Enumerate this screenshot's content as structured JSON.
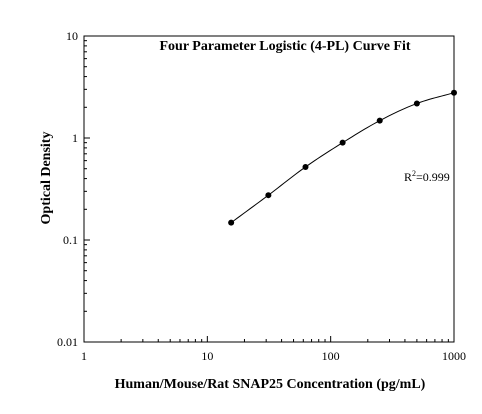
{
  "chart_data": {
    "type": "scatter",
    "title": "Four Parameter Logistic (4-PL) Curve Fit",
    "xlabel": "Human/Mouse/Rat SNAP25 Concentration (pg/mL)",
    "ylabel": "Optical Density",
    "xscale": "log",
    "yscale": "log",
    "xlim": [
      1,
      1000
    ],
    "ylim": [
      0.01,
      10
    ],
    "x_ticks": [
      1,
      10,
      100,
      1000
    ],
    "x_tick_labels": [
      "1",
      "10",
      "100",
      "1000"
    ],
    "y_ticks": [
      0.01,
      0.1,
      1,
      10
    ],
    "y_tick_labels": [
      "0.01",
      "0.1",
      "1",
      "10"
    ],
    "grid": false,
    "legend": "none",
    "series": [
      {
        "x": [
          15.6,
          31.25,
          62.5,
          125,
          250,
          500,
          1000
        ],
        "y": [
          0.148,
          0.275,
          0.52,
          0.9,
          1.48,
          2.18,
          2.78
        ],
        "marker": "circle",
        "fit_line": "4PL"
      }
    ],
    "annotation": {
      "prefix": "R",
      "sup": "2",
      "suffix": "=0.999"
    },
    "colors": {
      "line": "#000000",
      "marker": "#000000",
      "background": "#ffffff"
    }
  }
}
